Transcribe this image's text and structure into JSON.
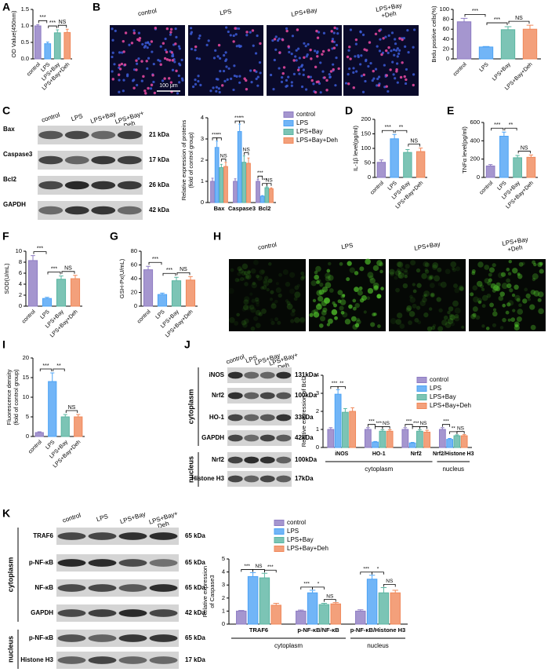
{
  "panels": [
    "A",
    "B",
    "C",
    "D",
    "E",
    "F",
    "G",
    "H",
    "I",
    "J",
    "K"
  ],
  "micrographs": [
    {
      "labels": [
        "control",
        "LPS",
        "LPS+Bay",
        [
          "LPS+Bay",
          "+Deh"
        ]
      ],
      "scale_bar": "100 μm"
    },
    {
      "labels": [
        "control",
        "LPS",
        "LPS+Bay",
        [
          "LPS+Bay",
          "+Deh"
        ]
      ]
    }
  ],
  "blots": [
    {
      "columns": [
        "control",
        "LPS",
        "LPS+Bay",
        [
          "LPS+Bay+",
          "Deh"
        ]
      ],
      "rows": [
        {
          "label": "Bax",
          "size": "21 kDa"
        },
        {
          "label": "Caspase3",
          "size": "17 kDa"
        },
        {
          "label": "Bcl2",
          "size": "26 kDa"
        },
        {
          "label": "GAPDH",
          "size": "42 kDa"
        }
      ]
    },
    {
      "columns": [
        "control",
        "LPS",
        "LPS+Bay",
        [
          "LPS+Bay+",
          "Deh"
        ]
      ],
      "rows": [
        {
          "label": "iNOS",
          "size": "131kDa"
        },
        {
          "label": "Nrf2",
          "size": "100kDa"
        },
        {
          "label": "HO-1",
          "size": "33kDa"
        },
        {
          "label": "GAPDH",
          "size": "42kDa"
        },
        {
          "label": "Nrf2",
          "size": "100kDa"
        },
        {
          "label": "Histone H3",
          "size": "17kDa"
        }
      ],
      "compartments": [
        "cytoplasm",
        "nucleus"
      ]
    },
    {
      "columns": [
        "control",
        "LPS",
        "LPS+Bay",
        [
          "LPS+Bay+",
          "Deh"
        ]
      ],
      "rows": [
        {
          "label": "TRAF6",
          "size": "65 kDa"
        },
        {
          "label": "p-NF-κB",
          "size": "65 kDa"
        },
        {
          "label": "NF-κB",
          "size": "65 kDa"
        },
        {
          "label": "GAPDH",
          "size": "42 kDa"
        },
        {
          "label": "p-NF-κB",
          "size": "65 kDa"
        },
        {
          "label": "Histone H3",
          "size": "17 kDa"
        }
      ],
      "compartments": [
        "cytoplasm",
        "nucleus"
      ]
    }
  ],
  "chart_data": [
    {
      "type": "bar",
      "ylabel": "OD Value(450nm)",
      "categories": [
        "control",
        "LPS",
        "LPS+Bay",
        "LPS+Bay+Deh"
      ],
      "values": [
        1.0,
        0.46,
        0.79,
        0.8
      ],
      "errors": [
        0.04,
        0.05,
        0.09,
        0.1
      ],
      "colors": [
        "#8e7cc3",
        "#4da3f5",
        "#5bb5a2",
        "#f0885a"
      ],
      "ylim": [
        0,
        1.5
      ],
      "yticks": [
        {
          "value": 0,
          "label": "0.0"
        },
        0.5,
        {
          "value": 1,
          "label": "1.0"
        },
        1.5
      ],
      "annotations": [
        "***",
        "***",
        "NS"
      ]
    },
    {
      "type": "bar",
      "ylabel": "Brdu positive cells(%)",
      "categories": [
        "control",
        "LPS",
        "LPS+Bay",
        "LPS+Bay+Deh"
      ],
      "values": [
        75,
        24,
        59,
        60
      ],
      "errors": [
        7,
        1,
        6,
        8
      ],
      "colors": [
        "#8e7cc3",
        "#4da3f5",
        "#5bb5a2",
        "#f0885a"
      ],
      "ylim": [
        0,
        100
      ],
      "yticks": [
        0,
        20,
        40,
        60,
        80,
        100
      ],
      "annotations": [
        "***",
        "***",
        "NS"
      ]
    },
    {
      "type": "grouped_bar",
      "ylabel": [
        "Relative expression of proteins",
        "(fold of control group)"
      ],
      "categories": [
        "Bax",
        "Caspase3",
        "Bcl2"
      ],
      "series": [
        {
          "name": "control",
          "color": "#8e7cc3",
          "values": [
            1,
            1,
            1
          ],
          "errors": [
            0.15,
            0.12,
            0.1
          ]
        },
        {
          "name": "LPS",
          "color": "#4da3f5",
          "values": [
            2.6,
            3.35,
            0.3
          ],
          "errors": [
            0.3,
            0.35,
            0.03
          ]
        },
        {
          "name": "LPS+Bay",
          "color": "#5bb5a2",
          "values": [
            1.65,
            1.9,
            0.7
          ],
          "errors": [
            0.15,
            0.3,
            0.05
          ]
        },
        {
          "name": "LPS+Bay+Deh",
          "color": "#f0885a",
          "values": [
            1.7,
            1.85,
            0.65
          ],
          "errors": [
            0.2,
            0.25,
            0.05
          ]
        }
      ],
      "ylim": [
        0,
        4
      ],
      "yticks": [
        0,
        1,
        2,
        3,
        4
      ],
      "legend": "right",
      "annotations": [
        "***",
        "**",
        "NS",
        "***",
        "**",
        "NS",
        "***",
        "***",
        "NS"
      ]
    },
    {
      "type": "bar",
      "ylabel": "IL-1β level(pg/ml)",
      "categories": [
        "control",
        "LPS",
        "LPS+Bay",
        "LPS+Bay+Deh"
      ],
      "values": [
        52,
        133,
        86,
        89
      ],
      "errors": [
        8,
        15,
        10,
        12
      ],
      "colors": [
        "#8e7cc3",
        "#4da3f5",
        "#5bb5a2",
        "#f0885a"
      ],
      "ylim": [
        0,
        200
      ],
      "yticks": [
        0,
        50,
        100,
        150,
        200
      ],
      "annotations": [
        "***",
        "**",
        "NS"
      ]
    },
    {
      "type": "bar",
      "ylabel": "TNFα level(pg/ml)",
      "categories": [
        "control",
        "LPS",
        "LPS+Bay",
        "LPS+Bay+Deh"
      ],
      "values": [
        125,
        450,
        215,
        220
      ],
      "errors": [
        15,
        45,
        25,
        25
      ],
      "colors": [
        "#8e7cc3",
        "#4da3f5",
        "#5bb5a2",
        "#f0885a"
      ],
      "ylim": [
        0,
        600
      ],
      "yticks": [
        0,
        200,
        400,
        600
      ],
      "annotations": [
        "***",
        "**",
        "NS"
      ]
    },
    {
      "type": "bar",
      "ylabel": "SOD(U/mL)",
      "categories": [
        "control",
        "LPS",
        "LPS+Bay",
        "LPS+Bay+Deh"
      ],
      "values": [
        8.3,
        1.4,
        4.9,
        5.0
      ],
      "errors": [
        0.9,
        0.2,
        0.6,
        0.6
      ],
      "colors": [
        "#8e7cc3",
        "#4da3f5",
        "#5bb5a2",
        "#f0885a"
      ],
      "ylim": [
        0,
        10
      ],
      "yticks": [
        0,
        2,
        4,
        6,
        8,
        10
      ],
      "annotations": [
        "***",
        "***",
        "NS"
      ]
    },
    {
      "type": "bar",
      "ylabel": "GSH-Px(U/mL)",
      "categories": [
        "control",
        "LPS",
        "LPS+Bay",
        "LPS+Bay+Deh"
      ],
      "values": [
        53,
        17,
        37,
        38
      ],
      "errors": [
        5,
        2,
        5,
        5
      ],
      "colors": [
        "#8e7cc3",
        "#4da3f5",
        "#5bb5a2",
        "#f0885a"
      ],
      "ylim": [
        0,
        80
      ],
      "yticks": [
        0,
        20,
        40,
        60,
        80
      ],
      "annotations": [
        "***",
        "***",
        "NS"
      ]
    },
    {
      "type": "bar",
      "ylabel": [
        "Fluorescence density",
        "(fold of control group)"
      ],
      "categories": [
        "control",
        "LPS",
        "LPS+Bay",
        "LPS+Bay+Deh"
      ],
      "values": [
        1,
        14,
        5,
        5
      ],
      "errors": [
        0.2,
        2.2,
        0.6,
        0.6
      ],
      "colors": [
        "#8e7cc3",
        "#4da3f5",
        "#5bb5a2",
        "#f0885a"
      ],
      "ylim": [
        0,
        20
      ],
      "yticks": [
        0,
        5,
        10,
        15,
        20
      ],
      "annotations": [
        "***",
        "**",
        "NS"
      ]
    },
    {
      "type": "grouped_bar",
      "ylabel": "Relative expression of Bcl2",
      "categories": [
        "iNOS",
        "HO-1",
        "Nrf2",
        "Nrf2/Histone H3"
      ],
      "group_labels": [
        "cytoplasm",
        "nucleus"
      ],
      "series": [
        {
          "name": "control",
          "color": "#8e7cc3",
          "values": [
            1,
            1,
            1,
            1
          ],
          "errors": [
            0.1,
            0.1,
            0.1,
            0.1
          ]
        },
        {
          "name": "LPS",
          "color": "#4da3f5",
          "values": [
            2.95,
            0.3,
            0.25,
            0.45
          ],
          "errors": [
            0.25,
            0.03,
            0.03,
            0.05
          ]
        },
        {
          "name": "LPS+Bay",
          "color": "#5bb5a2",
          "values": [
            1.95,
            0.9,
            0.9,
            0.65
          ],
          "errors": [
            0.2,
            0.08,
            0.08,
            0.05
          ]
        },
        {
          "name": "LPS+Bay+Deh",
          "color": "#f0885a",
          "values": [
            2.0,
            0.9,
            0.85,
            0.65
          ],
          "errors": [
            0.2,
            0.08,
            0.1,
            0.06
          ]
        }
      ],
      "ylim": [
        0,
        4
      ],
      "yticks": [
        0,
        1,
        2,
        3,
        4
      ],
      "legend": "upper right",
      "annotations": [
        "***",
        "**",
        "***",
        "***",
        "NS",
        "***",
        "***",
        "NS",
        "***",
        "**",
        "NS"
      ]
    },
    {
      "type": "grouped_bar",
      "ylabel": [
        "Relative expression",
        "of Caspase3"
      ],
      "categories": [
        "TRAF6",
        "p-NF-κB/NF-κB",
        "p-NF-κB/Histone H3"
      ],
      "group_labels": [
        "cytoplasm",
        "nucleus"
      ],
      "series": [
        {
          "name": "control",
          "color": "#8e7cc3",
          "values": [
            1,
            1,
            1
          ],
          "errors": [
            0.05,
            0.08,
            0.1
          ]
        },
        {
          "name": "LPS",
          "color": "#4da3f5",
          "values": [
            3.65,
            2.4,
            3.45
          ],
          "errors": [
            0.3,
            0.2,
            0.3
          ]
        },
        {
          "name": "LPS+Bay",
          "color": "#5bb5a2",
          "values": [
            3.55,
            1.5,
            2.4
          ],
          "errors": [
            0.35,
            0.1,
            0.4
          ]
        },
        {
          "name": "LPS+Bay+Deh",
          "color": "#f0885a",
          "values": [
            1.45,
            1.55,
            2.4
          ],
          "errors": [
            0.15,
            0.1,
            0.2
          ]
        }
      ],
      "ylim": [
        0,
        5
      ],
      "yticks": [
        0,
        1,
        2,
        3,
        4,
        5
      ],
      "legend": "upper",
      "annotations": [
        "***",
        "NS",
        "***",
        "***",
        "*",
        "NS",
        "***",
        "*",
        "NS"
      ]
    }
  ]
}
